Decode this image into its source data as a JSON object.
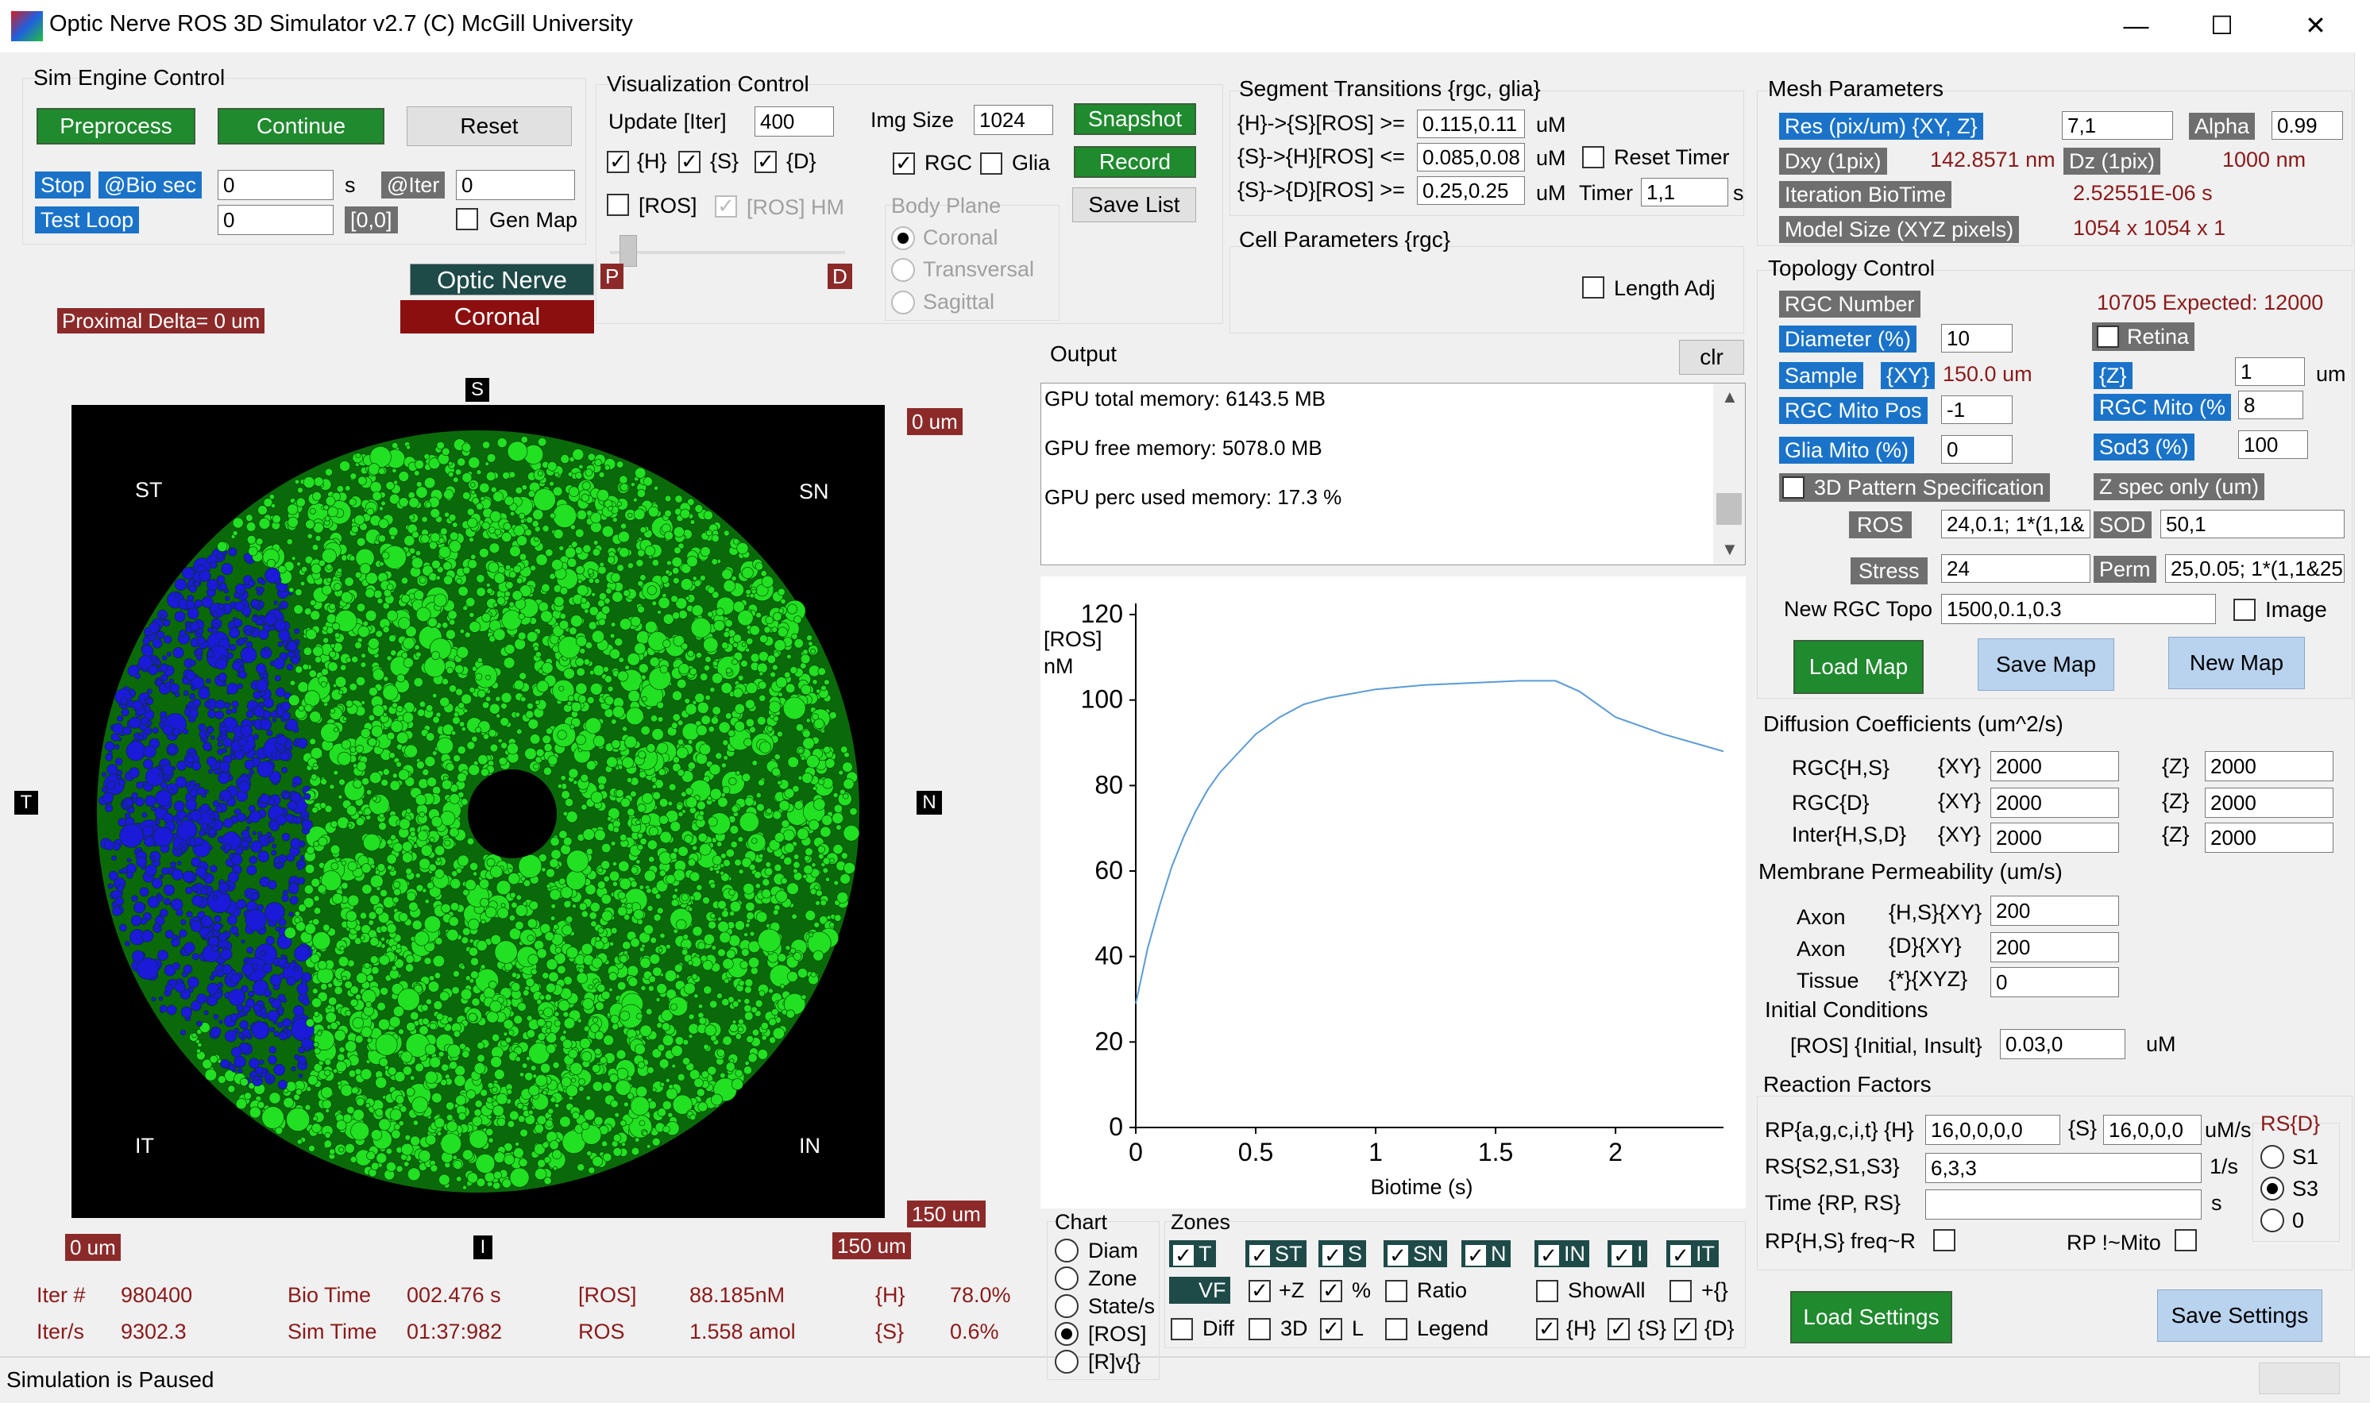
{
  "window": {
    "title": "Optic Nerve ROS 3D Simulator v2.7 (C) McGill University",
    "min": "—",
    "max": "☐",
    "close": "✕"
  },
  "sim": {
    "title": "Sim Engine Control",
    "preprocess": "Preprocess",
    "continue": "Continue",
    "reset": "Reset",
    "stop": "Stop",
    "bio_sec": "@Bio sec",
    "bio_sec_val": "0",
    "s": "s",
    "iter": "@Iter",
    "iter_val": "0",
    "test_loop": "Test Loop",
    "test_loop_val": "0",
    "zero": "[0,0]",
    "gen_map": "Gen Map"
  },
  "vis": {
    "title": "Visualization Control",
    "update": "Update [Iter]",
    "update_val": "400",
    "img_size": "Img Size",
    "img_size_val": "1024",
    "snapshot": "Snapshot",
    "record": "Record",
    "save_list": "Save List",
    "h": "{H}",
    "s": "{S}",
    "d": "{D}",
    "rgc": "RGC",
    "glia": "Glia",
    "ros": "[ROS]",
    "ros_hm": "[ROS] HM",
    "body_plane": "Body Plane",
    "coronal": "Coronal",
    "transversal": "Transversal",
    "sagittal": "Sagittal",
    "p": "P",
    "dd": "D"
  },
  "seg": {
    "title": "Segment Transitions {rgc, glia}",
    "r1": "{H}->{S}[ROS] >=",
    "r1v": "0.115,0.11",
    "r2": "{S}->{H}[ROS] <=",
    "r2v": "0.085,0.08",
    "r3": "{S}->{D}[ROS] >=",
    "r3v": "0.25,0.25",
    "um": "uM",
    "reset_timer": "Reset Timer",
    "timer": "Timer",
    "timer_val": "1,1",
    "s": "s"
  },
  "cell": {
    "title": "Cell Parameters {rgc}",
    "length_adj": "Length Adj"
  },
  "view": {
    "optic_nerve": "Optic Nerve",
    "coronal": "Coronal",
    "prox": "Proximal Delta= 0 um",
    "S": "S",
    "I": "I",
    "T": "T",
    "N": "N",
    "ST": "ST",
    "SN": "SN",
    "IT": "IT",
    "IN": "IN",
    "zero_um_top": "0 um",
    "um150_right": "150 um",
    "zero_um_bottom": "0 um",
    "um150_bottom": "150 um"
  },
  "status": {
    "iter_label": "Iter #",
    "iter_val": "980400",
    "iters_label": "Iter/s",
    "iters_val": "9302.3",
    "biotime_label": "Bio Time",
    "biotime_val": "002.476 s",
    "simtime_label": "Sim Time",
    "simtime_val": "01:37:982",
    "ros1_label": "[ROS]",
    "ros1_val": "88.185nM",
    "ros2_label": "ROS",
    "ros2_val": "1.558 amol",
    "h_label": "{H}",
    "h_val": "78.0%",
    "s_label": "{S}",
    "s_val": "0.6%",
    "bottom": "Simulation is Paused"
  },
  "output": {
    "title": "Output",
    "clr": "clr",
    "lines": [
      "GPU total memory: 6143.5 MB",
      "GPU free memory: 5078.0 MB",
      "GPU perc used memory: 17.3 %"
    ]
  },
  "chart_data": {
    "type": "line",
    "ylabel": "[ROS]\nnM",
    "xlabel": "Biotime (s)",
    "xlim": [
      0,
      2.45
    ],
    "ylim": [
      0,
      120
    ],
    "xticks": [
      "0",
      "0.5",
      "1",
      "1.5",
      "2"
    ],
    "yticks": [
      "0",
      "20",
      "40",
      "60",
      "80",
      "100",
      "120"
    ],
    "color": "#5b9bd5",
    "x": [
      0,
      0.05,
      0.1,
      0.15,
      0.2,
      0.25,
      0.3,
      0.35,
      0.4,
      0.5,
      0.6,
      0.7,
      0.8,
      0.9,
      1.0,
      1.2,
      1.4,
      1.6,
      1.75,
      1.85,
      2.0,
      2.2,
      2.45
    ],
    "y": [
      29,
      42,
      52,
      61,
      68,
      74,
      79,
      83,
      86,
      92,
      96,
      99,
      100.5,
      101.5,
      102.5,
      103.5,
      104,
      104.5,
      104.5,
      102,
      96,
      92,
      88
    ]
  },
  "chartctl": {
    "chart": "Chart",
    "diam": "Diam",
    "zone": "Zone",
    "states": "State/s",
    "ros": "[ROS]",
    "rv": "[R]v{}",
    "zones": "Zones",
    "T": "T",
    "ST": "ST",
    "S": "S",
    "SN": "SN",
    "N": "N",
    "IN": "IN",
    "I": "I",
    "IT": "IT",
    "VF": "VF",
    "pz": "+Z",
    "pct": "%",
    "ratio": "Ratio",
    "showall": "ShowAll",
    "pbrace": "+{}",
    "diff": "Diff",
    "d3": "3D",
    "L": "L",
    "legend": "Legend",
    "h": "{H}",
    "s": "{S}",
    "d": "{D}"
  },
  "mesh": {
    "title": "Mesh Parameters",
    "res": "Res (pix/um) {XY, Z}",
    "res_val": "7,1",
    "alpha": "Alpha",
    "alpha_val": "0.99",
    "dxy": "Dxy (1pix)",
    "dxy_val": "142.8571 nm",
    "dz": "Dz (1pix)",
    "dz_val": "1000 nm",
    "iter_bt": "Iteration BioTime",
    "iter_bt_val": "2.52551E-06 s",
    "model": "Model Size (XYZ pixels)",
    "model_val": "1054 x 1054 x 1"
  },
  "topo": {
    "title": "Topology Control",
    "rgc_num": "RGC Number",
    "expected": "10705 Expected: 12000",
    "diameter": "Diameter (%)",
    "diameter_val": "10",
    "retina": "Retina",
    "sample": "Sample",
    "xy": "{XY}",
    "sample_val": "150.0 um",
    "z": "{Z}",
    "z_val": "1",
    "um": "um",
    "rgc_mito_pos": "RGC Mito Pos",
    "rgc_mito_pos_val": "-1",
    "rgc_mito": "RGC Mito (%",
    "rgc_mito_val": "8",
    "glia_mito": "Glia Mito (%)",
    "glia_mito_val": "0",
    "sod3": "Sod3 (%)",
    "sod3_val": "100",
    "pattern": "3D Pattern Specification",
    "zspec": "Z spec only (um)",
    "ros": "ROS",
    "ros_val": "24,0.1; 1*(1,1&",
    "sod": "SOD",
    "sod_val": "50,1",
    "stress": "Stress",
    "stress_val": "24",
    "perm": "Perm",
    "perm_val": "25,0.05; 1*(1,1&25",
    "new_rgc": "New RGC Topo",
    "new_rgc_val": "1500,0.1,0.3",
    "image": "Image",
    "load_map": "Load Map",
    "save_map": "Save Map",
    "new_map": "New Map"
  },
  "diff": {
    "title": "Diffusion Coefficients (um^2/s)",
    "rows": [
      {
        "label": "RGC{H,S}",
        "xy": "{XY}",
        "xyv": "2000",
        "z": "{Z}",
        "zv": "2000"
      },
      {
        "label": "RGC{D}",
        "xy": "{XY}",
        "xyv": "2000",
        "z": "{Z}",
        "zv": "2000"
      },
      {
        "label": "Inter{H,S,D}",
        "xy": "{XY}",
        "xyv": "2000",
        "z": "{Z}",
        "zv": "2000"
      }
    ]
  },
  "perm": {
    "title": "Membrane Permeability (um/s)",
    "rows": [
      {
        "a": "Axon",
        "b": "{H,S}{XY}",
        "v": "200"
      },
      {
        "a": "Axon",
        "b": "{D}{XY}",
        "v": "200"
      },
      {
        "a": "Tissue",
        "b": "{*}{XYZ}",
        "v": "0"
      }
    ]
  },
  "init": {
    "title": "Initial Conditions",
    "label": "[ROS] {Initial, Insult}",
    "val": "0.03,0",
    "um": "uM"
  },
  "react": {
    "title": "Reaction Factors",
    "rp": "RP{a,g,c,i,t} {H}",
    "rp_h": "16,0,0,0,0",
    "rp_s_lbl": "{S}",
    "rp_s": "16,0,0,0",
    "ums": "uM/s",
    "rs": "RS{S2,S1,S3}",
    "rs_val": "6,3,3",
    "pers": "1/s",
    "time": "Time {RP, RS}",
    "time_val": "",
    "s": "s",
    "freq": "RP{H,S} freq~R",
    "mito": "RP !~Mito",
    "rsd": "RS{D}",
    "s1": "S1",
    "s3": "S3",
    "zero": "0"
  },
  "settings": {
    "load": "Load Settings",
    "save": "Save Settings"
  }
}
